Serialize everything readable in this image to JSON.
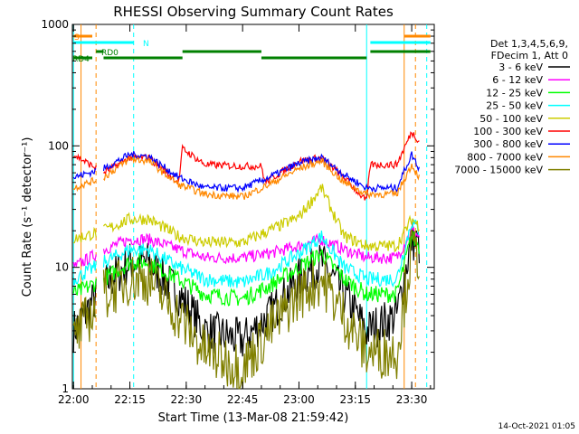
{
  "chart_data": {
    "type": "line",
    "title": "RHESSI Observing Summary Count Rates",
    "xlabel": "Start Time (13-Mar-08 21:59:42)",
    "ylabel": "Count Rate (s⁻¹ detector⁻¹)",
    "y_scale": "log",
    "ylim": [
      1,
      1000
    ],
    "xlim": [
      "21:59:42",
      "23:36:00"
    ],
    "x_tick_labels": [
      "22:00",
      "22:15",
      "22:30",
      "22:45",
      "23:00",
      "23:15",
      "23:30"
    ],
    "y_tick_labels": [
      "1",
      "10",
      "100",
      "1000"
    ],
    "legend_header": [
      "Det 1,3,4,5,6,9,",
      "FDecim 1, Att 0"
    ],
    "legend_position": "right",
    "footer": "14-Oct-2021 01:05",
    "data_gaps": [
      [
        "22:06",
        "22:08"
      ]
    ],
    "series": [
      {
        "name": "3 - 6 keV",
        "color": "#000000",
        "x": [
          "22:00",
          "22:08",
          "22:15",
          "22:20",
          "22:28",
          "22:35",
          "22:45",
          "22:52",
          "23:00",
          "23:06",
          "23:12",
          "23:18",
          "23:26",
          "23:30",
          "23:32"
        ],
        "y": [
          3,
          7,
          11,
          11,
          6,
          3,
          2.5,
          4,
          8,
          11,
          6,
          3,
          4,
          17,
          15
        ]
      },
      {
        "name": "6 - 12 keV",
        "color": "#ff00ff",
        "x": [
          "22:00",
          "22:08",
          "22:15",
          "22:20",
          "22:28",
          "22:35",
          "22:45",
          "22:52",
          "23:00",
          "23:06",
          "23:12",
          "23:18",
          "23:26",
          "23:30",
          "23:32"
        ],
        "y": [
          10,
          14,
          17,
          17,
          14,
          12,
          12,
          13,
          15,
          17,
          14,
          12,
          12,
          20,
          18
        ]
      },
      {
        "name": "12 - 25 keV",
        "color": "#00ff00",
        "x": [
          "22:00",
          "22:08",
          "22:15",
          "22:20",
          "22:28",
          "22:35",
          "22:45",
          "22:52",
          "23:00",
          "23:06",
          "23:12",
          "23:18",
          "23:26",
          "23:30",
          "23:32"
        ],
        "y": [
          6,
          8,
          11,
          11,
          8,
          6,
          5.5,
          7,
          10,
          13,
          8,
          6,
          6,
          18,
          15
        ]
      },
      {
        "name": "25 - 50 keV",
        "color": "#00ffff",
        "x": [
          "22:00",
          "22:08",
          "22:15",
          "22:20",
          "22:28",
          "22:35",
          "22:45",
          "22:52",
          "23:00",
          "23:06",
          "23:12",
          "23:18",
          "23:26",
          "23:30",
          "23:32"
        ],
        "y": [
          8,
          11,
          14,
          14,
          10,
          8,
          7.5,
          9,
          13,
          18,
          10,
          8,
          8,
          24,
          20
        ]
      },
      {
        "name": "50 - 100 keV",
        "color": "#cccc00",
        "x": [
          "22:00",
          "22:08",
          "22:15",
          "22:20",
          "22:28",
          "22:35",
          "22:45",
          "22:52",
          "23:00",
          "23:06",
          "23:12",
          "23:18",
          "23:26",
          "23:30",
          "23:32"
        ],
        "y": [
          17,
          20,
          25,
          25,
          18,
          16,
          16,
          20,
          26,
          45,
          18,
          15,
          15,
          25,
          22
        ]
      },
      {
        "name": "100 - 300 keV",
        "color": "#ff0000",
        "x": [
          "22:00",
          "22:08",
          "22:15",
          "22:20",
          "22:28",
          "22:29",
          "22:35",
          "22:45",
          "22:50",
          "22:51",
          "23:00",
          "23:06",
          "23:12",
          "23:18",
          "23:19",
          "23:26",
          "23:30",
          "23:32"
        ],
        "y": [
          85,
          60,
          80,
          80,
          50,
          95,
          70,
          68,
          68,
          50,
          75,
          80,
          55,
          35,
          70,
          70,
          130,
          110
        ]
      },
      {
        "name": "300 - 800 keV",
        "color": "#0000ff",
        "x": [
          "22:00",
          "22:08",
          "22:15",
          "22:20",
          "22:28",
          "22:35",
          "22:45",
          "22:52",
          "23:00",
          "23:06",
          "23:12",
          "23:18",
          "23:26",
          "23:30",
          "23:32"
        ],
        "y": [
          55,
          65,
          85,
          82,
          55,
          45,
          45,
          55,
          72,
          80,
          58,
          45,
          45,
          85,
          65
        ]
      },
      {
        "name": "800 - 7000 keV",
        "color": "#ff8800",
        "x": [
          "22:00",
          "22:08",
          "22:15",
          "22:20",
          "22:28",
          "22:35",
          "22:45",
          "22:52",
          "23:00",
          "23:06",
          "23:12",
          "23:18",
          "23:26",
          "23:30",
          "23:32"
        ],
        "y": [
          45,
          55,
          78,
          75,
          48,
          40,
          38,
          48,
          65,
          75,
          50,
          40,
          40,
          70,
          55
        ]
      },
      {
        "name": "7000 - 15000 keV",
        "color": "#808000",
        "x": [
          "22:00",
          "22:08",
          "22:15",
          "22:20",
          "22:28",
          "22:35",
          "22:45",
          "22:52",
          "23:00",
          "23:06",
          "23:12",
          "23:18",
          "23:26",
          "23:30",
          "23:32"
        ],
        "y": [
          2.5,
          6,
          8,
          8,
          4,
          2,
          1.5,
          3,
          6,
          8,
          4,
          2,
          2,
          14,
          12
        ]
      }
    ],
    "flag_bars": [
      {
        "label": "S",
        "color": "#ff8800",
        "segments": [
          [
            "22:00",
            "22:05"
          ],
          [
            "23:28",
            "23:35"
          ]
        ]
      },
      {
        "label": "N",
        "color": "#00ffff",
        "segments": [
          [
            "22:00",
            "22:16"
          ],
          [
            "23:19",
            "23:35"
          ]
        ]
      },
      {
        "label": "RD0",
        "color": "#008000",
        "segments": [
          [
            "22:06",
            "22:08"
          ],
          [
            "22:29",
            "22:50"
          ],
          [
            "23:19",
            "23:35"
          ]
        ]
      },
      {
        "label": "RD4",
        "color": "#008000",
        "segments": [
          [
            "22:00",
            "22:05"
          ],
          [
            "22:08",
            "22:29"
          ],
          [
            "22:50",
            "23:18"
          ]
        ]
      }
    ],
    "vertical_markers": [
      {
        "x": "22:00",
        "color": "#00ffff",
        "style": "solid"
      },
      {
        "x": "22:02",
        "color": "#ff8800",
        "style": "solid"
      },
      {
        "x": "22:06",
        "color": "#ff8800",
        "style": "dashed"
      },
      {
        "x": "22:16",
        "color": "#00ffff",
        "style": "dashed"
      },
      {
        "x": "23:18",
        "color": "#00ffff",
        "style": "solid"
      },
      {
        "x": "23:28",
        "color": "#ff8800",
        "style": "solid"
      },
      {
        "x": "23:31",
        "color": "#ff8800",
        "style": "dashed"
      },
      {
        "x": "23:34",
        "color": "#00ffff",
        "style": "dashed"
      }
    ]
  }
}
